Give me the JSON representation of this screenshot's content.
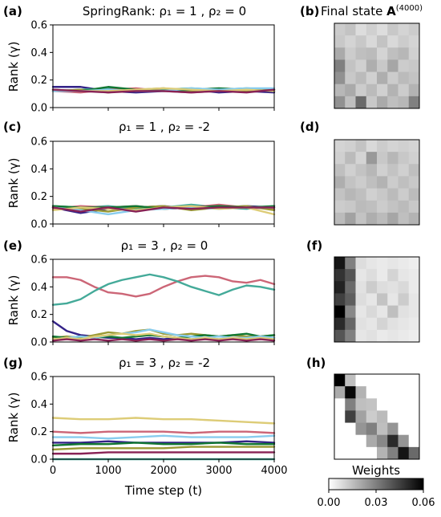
{
  "figure": {
    "ylabel": "Rank (γ)",
    "xlabel": "Time step (t)",
    "heatmap_title": "Final state A(4000)",
    "colorbar_title": "Weights",
    "colorbar_ticks": [
      "0.00",
      "0.03",
      "0.06"
    ],
    "colorbar_range": [
      0,
      0.06
    ]
  },
  "colors": {
    "purple": "#332288",
    "teal": "#44AA99",
    "rose": "#CC6677",
    "olive": "#999933",
    "green": "#117733",
    "cyan": "#88CCEE",
    "sand": "#DDCC77",
    "wine": "#882255"
  },
  "chart_data": [
    {
      "type": "line",
      "panel_label": "(a)",
      "title": "SpringRank: ρ₁ = 1 ,  ρ₂ = 0",
      "ylabel": "Rank (γ)",
      "x": [
        0,
        500,
        1000,
        1500,
        2000,
        2500,
        3000,
        3500,
        4000
      ],
      "xlim": [
        0,
        4000
      ],
      "ylim": [
        0,
        0.6
      ],
      "yticks": [
        "0.0",
        "0.2",
        "0.4",
        "0.6"
      ],
      "series": [
        {
          "color": "#332288",
          "values": [
            0.15,
            0.15,
            0.12,
            0.11,
            0.12,
            0.13,
            0.11,
            0.12,
            0.11
          ]
        },
        {
          "color": "#44AA99",
          "values": [
            0.12,
            0.13,
            0.14,
            0.12,
            0.13,
            0.14,
            0.13,
            0.14,
            0.13
          ]
        },
        {
          "color": "#CC6677",
          "values": [
            0.12,
            0.11,
            0.13,
            0.14,
            0.12,
            0.11,
            0.12,
            0.13,
            0.12
          ]
        },
        {
          "color": "#999933",
          "values": [
            0.12,
            0.13,
            0.11,
            0.13,
            0.14,
            0.12,
            0.13,
            0.12,
            0.13
          ]
        },
        {
          "color": "#117733",
          "values": [
            0.13,
            0.12,
            0.15,
            0.13,
            0.12,
            0.13,
            0.14,
            0.13,
            0.12
          ]
        },
        {
          "color": "#88CCEE",
          "values": [
            0.12,
            0.12,
            0.13,
            0.12,
            0.12,
            0.14,
            0.13,
            0.14,
            0.14
          ]
        },
        {
          "color": "#DDCC77",
          "values": [
            0.13,
            0.12,
            0.12,
            0.13,
            0.14,
            0.13,
            0.12,
            0.13,
            0.12
          ]
        },
        {
          "color": "#882255",
          "values": [
            0.13,
            0.12,
            0.11,
            0.12,
            0.12,
            0.11,
            0.12,
            0.11,
            0.13
          ]
        }
      ]
    },
    {
      "type": "line",
      "panel_label": "(c)",
      "title": "ρ₁ = 1 ,  ρ₂ = -2",
      "ylabel": "Rank (γ)",
      "x": [
        0,
        500,
        1000,
        1500,
        2000,
        2500,
        3000,
        3500,
        4000
      ],
      "xlim": [
        0,
        4000
      ],
      "ylim": [
        0,
        0.6
      ],
      "yticks": [
        "0.0",
        "0.2",
        "0.4",
        "0.6"
      ],
      "series": [
        {
          "color": "#332288",
          "values": [
            0.12,
            0.08,
            0.11,
            0.12,
            0.13,
            0.11,
            0.12,
            0.13,
            0.12
          ]
        },
        {
          "color": "#44AA99",
          "values": [
            0.13,
            0.12,
            0.13,
            0.11,
            0.12,
            0.14,
            0.12,
            0.11,
            0.13
          ]
        },
        {
          "color": "#CC6677",
          "values": [
            0.11,
            0.13,
            0.12,
            0.13,
            0.11,
            0.12,
            0.14,
            0.12,
            0.11
          ]
        },
        {
          "color": "#999933",
          "values": [
            0.12,
            0.11,
            0.09,
            0.12,
            0.13,
            0.1,
            0.12,
            0.13,
            0.1
          ]
        },
        {
          "color": "#117733",
          "values": [
            0.13,
            0.12,
            0.12,
            0.13,
            0.11,
            0.12,
            0.13,
            0.12,
            0.13
          ]
        },
        {
          "color": "#88CCEE",
          "values": [
            0.12,
            0.1,
            0.07,
            0.1,
            0.11,
            0.12,
            0.11,
            0.12,
            0.12
          ]
        },
        {
          "color": "#DDCC77",
          "values": [
            0.1,
            0.12,
            0.11,
            0.1,
            0.12,
            0.13,
            0.11,
            0.12,
            0.07
          ]
        },
        {
          "color": "#882255",
          "values": [
            0.12,
            0.09,
            0.12,
            0.09,
            0.12,
            0.11,
            0.12,
            0.12,
            0.12
          ]
        }
      ]
    },
    {
      "type": "line",
      "panel_label": "(e)",
      "title": "ρ₁ = 3 ,  ρ₂ = 0",
      "ylabel": "Rank (γ)",
      "x": [
        0,
        250,
        500,
        750,
        1000,
        1250,
        1500,
        1750,
        2000,
        2250,
        2500,
        2750,
        3000,
        3250,
        3500,
        3750,
        4000
      ],
      "xlim": [
        0,
        4000
      ],
      "ylim": [
        0,
        0.6
      ],
      "yticks": [
        "0.0",
        "0.2",
        "0.4",
        "0.6"
      ],
      "series": [
        {
          "color": "#CC6677",
          "values": [
            0.47,
            0.47,
            0.45,
            0.4,
            0.36,
            0.35,
            0.33,
            0.35,
            0.4,
            0.44,
            0.47,
            0.48,
            0.47,
            0.44,
            0.43,
            0.45,
            0.42
          ]
        },
        {
          "color": "#44AA99",
          "values": [
            0.27,
            0.28,
            0.31,
            0.37,
            0.42,
            0.45,
            0.47,
            0.49,
            0.47,
            0.44,
            0.4,
            0.37,
            0.34,
            0.38,
            0.41,
            0.4,
            0.38
          ]
        },
        {
          "color": "#332288",
          "values": [
            0.15,
            0.08,
            0.05,
            0.04,
            0.03,
            0.03,
            0.02,
            0.03,
            0.02,
            0.03,
            0.02,
            0.03,
            0.02,
            0.03,
            0.03,
            0.02,
            0.03
          ]
        },
        {
          "color": "#999933",
          "values": [
            0.03,
            0.04,
            0.03,
            0.05,
            0.07,
            0.06,
            0.08,
            0.09,
            0.06,
            0.05,
            0.06,
            0.05,
            0.04,
            0.05,
            0.04,
            0.04,
            0.05
          ]
        },
        {
          "color": "#117733",
          "values": [
            0.04,
            0.03,
            0.04,
            0.03,
            0.04,
            0.03,
            0.04,
            0.05,
            0.04,
            0.03,
            0.04,
            0.05,
            0.04,
            0.05,
            0.06,
            0.04,
            0.05
          ]
        },
        {
          "color": "#88CCEE",
          "values": [
            0.02,
            0.03,
            0.04,
            0.03,
            0.05,
            0.06,
            0.07,
            0.09,
            0.07,
            0.05,
            0.04,
            0.03,
            0.04,
            0.03,
            0.03,
            0.04,
            0.03
          ]
        },
        {
          "color": "#DDCC77",
          "values": [
            0.02,
            0.03,
            0.02,
            0.04,
            0.05,
            0.06,
            0.05,
            0.06,
            0.04,
            0.03,
            0.02,
            0.03,
            0.02,
            0.03,
            0.02,
            0.03,
            0.02
          ]
        },
        {
          "color": "#882255",
          "values": [
            0.01,
            0.02,
            0.01,
            0.02,
            0.01,
            0.02,
            0.01,
            0.02,
            0.01,
            0.02,
            0.01,
            0.02,
            0.01,
            0.02,
            0.01,
            0.02,
            0.01
          ]
        }
      ]
    },
    {
      "type": "line",
      "panel_label": "(g)",
      "title": "ρ₁ = 3 ,  ρ₂ = -2",
      "ylabel": "Rank (γ)",
      "xlabel": "Time step (t)",
      "x": [
        0,
        500,
        1000,
        1500,
        2000,
        2500,
        3000,
        3500,
        4000
      ],
      "xlim": [
        0,
        4000
      ],
      "ylim": [
        0,
        0.6
      ],
      "xticks": [
        "0",
        "1000",
        "2000",
        "3000",
        "4000"
      ],
      "yticks": [
        "0.0",
        "0.2",
        "0.4",
        "0.6"
      ],
      "series": [
        {
          "color": "#DDCC77",
          "values": [
            0.3,
            0.29,
            0.29,
            0.3,
            0.29,
            0.29,
            0.28,
            0.27,
            0.26
          ]
        },
        {
          "color": "#CC6677",
          "values": [
            0.2,
            0.19,
            0.2,
            0.2,
            0.2,
            0.19,
            0.2,
            0.2,
            0.19
          ]
        },
        {
          "color": "#88CCEE",
          "values": [
            0.16,
            0.16,
            0.15,
            0.16,
            0.17,
            0.16,
            0.16,
            0.16,
            0.17
          ]
        },
        {
          "color": "#332288",
          "values": [
            0.12,
            0.12,
            0.13,
            0.12,
            0.12,
            0.12,
            0.12,
            0.13,
            0.12
          ]
        },
        {
          "color": "#117733",
          "values": [
            0.1,
            0.11,
            0.11,
            0.12,
            0.11,
            0.11,
            0.12,
            0.11,
            0.11
          ]
        },
        {
          "color": "#999933",
          "values": [
            0.07,
            0.08,
            0.08,
            0.08,
            0.08,
            0.09,
            0.09,
            0.09,
            0.09
          ]
        },
        {
          "color": "#882255",
          "values": [
            0.04,
            0.04,
            0.05,
            0.05,
            0.05,
            0.05,
            0.05,
            0.05,
            0.05
          ]
        },
        {
          "color": "#44AA99",
          "values": [
            0.0,
            0.0,
            0.0,
            0.0,
            0.0,
            0.0,
            0.0,
            0.0,
            0.0
          ]
        }
      ]
    },
    {
      "type": "heatmap",
      "panel_label": "(b)",
      "title": "Final state A(4000)",
      "values": [
        [
          0.012,
          0.014,
          0.008,
          0.011,
          0.008,
          0.013,
          0.01,
          0.012
        ],
        [
          0.013,
          0.01,
          0.013,
          0.009,
          0.014,
          0.009,
          0.012,
          0.01
        ],
        [
          0.02,
          0.012,
          0.015,
          0.016,
          0.01,
          0.015,
          0.017,
          0.011
        ],
        [
          0.03,
          0.014,
          0.011,
          0.019,
          0.013,
          0.021,
          0.012,
          0.013
        ],
        [
          0.026,
          0.013,
          0.016,
          0.011,
          0.019,
          0.012,
          0.016,
          0.014
        ],
        [
          0.017,
          0.02,
          0.012,
          0.016,
          0.011,
          0.018,
          0.012,
          0.018
        ],
        [
          0.026,
          0.015,
          0.035,
          0.013,
          0.02,
          0.015,
          0.017,
          0.03
        ]
      ]
    },
    {
      "type": "heatmap",
      "panel_label": "(d)",
      "values": [
        [
          0.01,
          0.011,
          0.014,
          0.009,
          0.012,
          0.01,
          0.011,
          0.01
        ],
        [
          0.011,
          0.016,
          0.01,
          0.024,
          0.013,
          0.017,
          0.013,
          0.011
        ],
        [
          0.015,
          0.011,
          0.014,
          0.017,
          0.011,
          0.014,
          0.011,
          0.015
        ],
        [
          0.019,
          0.014,
          0.012,
          0.015,
          0.018,
          0.012,
          0.015,
          0.013
        ],
        [
          0.014,
          0.017,
          0.015,
          0.011,
          0.013,
          0.016,
          0.012,
          0.016
        ],
        [
          0.012,
          0.013,
          0.016,
          0.015,
          0.012,
          0.014,
          0.016,
          0.013
        ],
        [
          0.016,
          0.022,
          0.014,
          0.019,
          0.016,
          0.021,
          0.015,
          0.018
        ]
      ]
    },
    {
      "type": "heatmap",
      "panel_label": "(f)",
      "values": [
        [
          0.055,
          0.03,
          0.008,
          0.006,
          0.005,
          0.006,
          0.005,
          0.004
        ],
        [
          0.048,
          0.04,
          0.006,
          0.008,
          0.005,
          0.01,
          0.006,
          0.005
        ],
        [
          0.052,
          0.035,
          0.007,
          0.012,
          0.008,
          0.007,
          0.009,
          0.005
        ],
        [
          0.045,
          0.038,
          0.008,
          0.006,
          0.014,
          0.006,
          0.012,
          0.006
        ],
        [
          0.06,
          0.028,
          0.006,
          0.009,
          0.006,
          0.015,
          0.007,
          0.006
        ],
        [
          0.05,
          0.036,
          0.007,
          0.006,
          0.01,
          0.007,
          0.006,
          0.005
        ],
        [
          0.04,
          0.03,
          0.006,
          0.007,
          0.005,
          0.006,
          0.005,
          0.004
        ]
      ]
    },
    {
      "type": "heatmap",
      "panel_label": "(h)",
      "values": [
        [
          0.06,
          0.015,
          0.0,
          0.0,
          0.0,
          0.0,
          0.0,
          0.0
        ],
        [
          0.02,
          0.058,
          0.018,
          0.0,
          0.0,
          0.0,
          0.0,
          0.0
        ],
        [
          0.0,
          0.03,
          0.015,
          0.014,
          0.0,
          0.0,
          0.0,
          0.0
        ],
        [
          0.0,
          0.045,
          0.022,
          0.012,
          0.016,
          0.0,
          0.0,
          0.0
        ],
        [
          0.0,
          0.0,
          0.025,
          0.03,
          0.015,
          0.025,
          0.0,
          0.0
        ],
        [
          0.0,
          0.0,
          0.0,
          0.02,
          0.028,
          0.05,
          0.025,
          0.0
        ],
        [
          0.0,
          0.0,
          0.0,
          0.0,
          0.018,
          0.03,
          0.055,
          0.035
        ]
      ]
    }
  ]
}
